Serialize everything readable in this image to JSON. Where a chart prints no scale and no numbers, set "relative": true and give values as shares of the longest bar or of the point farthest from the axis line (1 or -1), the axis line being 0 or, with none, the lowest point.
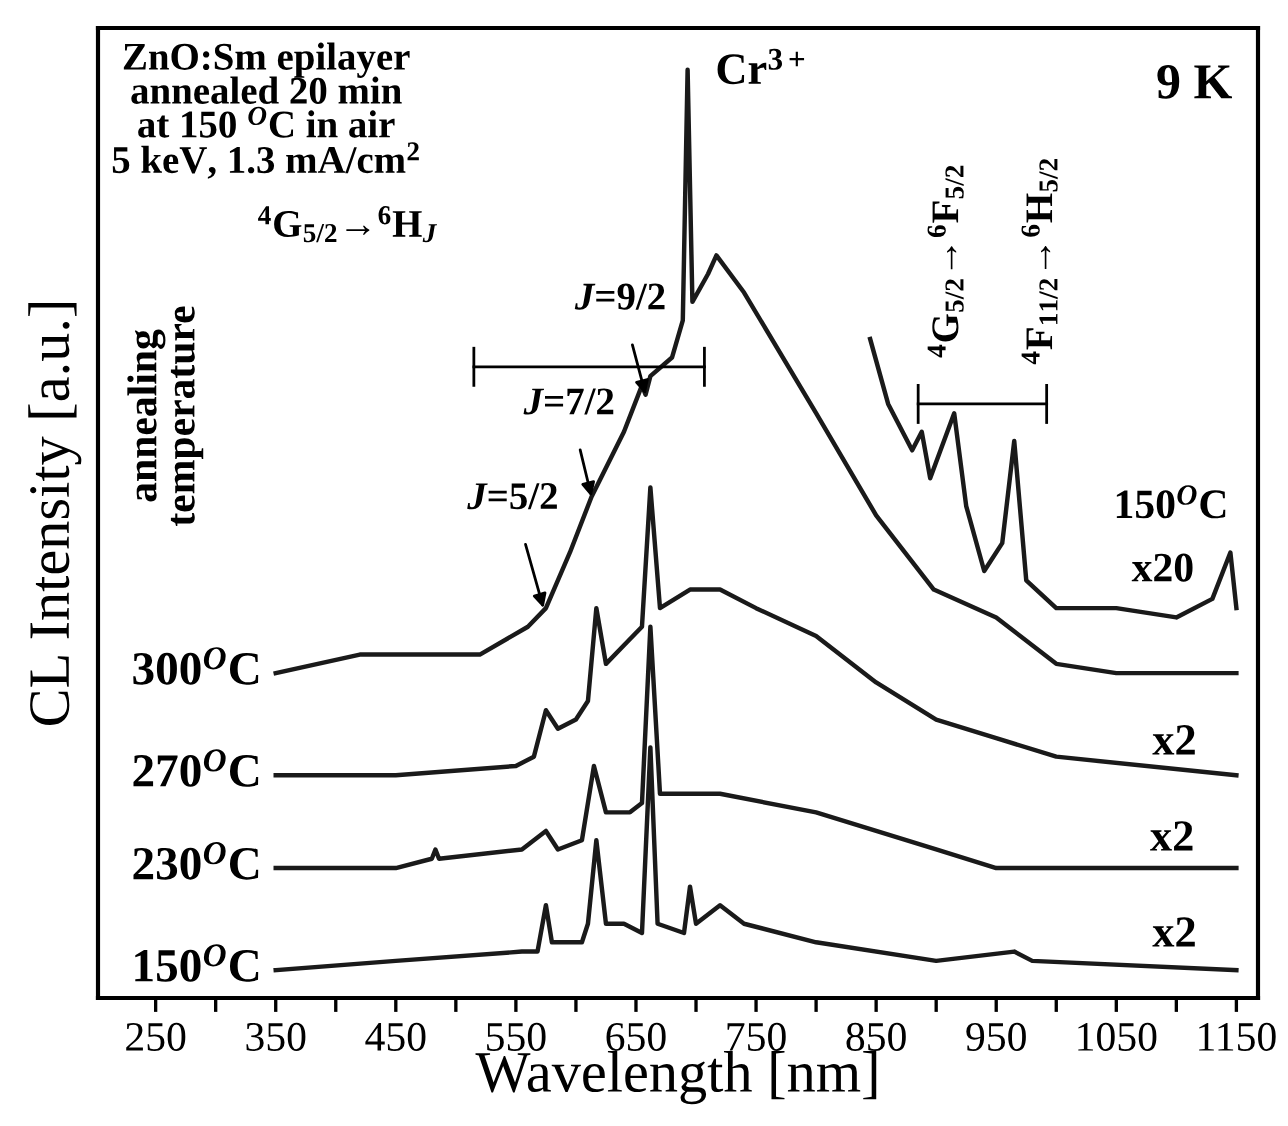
{
  "chart_data": {
    "type": "line",
    "relative": true,
    "xlabel": "Wavelength [nm]",
    "ylabel": "CL Intensity [a.u.]",
    "xlim": [
      202,
      1168
    ],
    "xticks": [
      250,
      {
        "value": 300,
        "label": null
      },
      350,
      {
        "value": 400,
        "label": null
      },
      450,
      {
        "value": 500,
        "label": null
      },
      550,
      {
        "value": 600,
        "label": null
      },
      650,
      {
        "value": 700,
        "label": null
      },
      750,
      {
        "value": 800,
        "label": null
      },
      850,
      {
        "value": 900,
        "label": null
      },
      950,
      {
        "value": 1000,
        "label": null
      },
      1050,
      {
        "value": 1100,
        "label": null
      },
      1150
    ],
    "tick_labels": "x",
    "grid": false,
    "legend": false,
    "marker": "none",
    "line_style": "solid",
    "series": [
      {
        "name": "150$^{O}$C",
        "color": "#1a1a1a",
        "x": [
          350,
          450,
          555,
          568,
          575,
          580,
          605,
          610,
          617,
          625,
          640,
          655,
          662,
          668,
          690,
          695,
          700,
          720,
          740,
          800,
          900,
          965,
          980,
          1150
        ],
        "values": [
          0.03,
          0.04,
          0.05,
          0.05,
          0.1,
          0.06,
          0.06,
          0.08,
          0.17,
          0.08,
          0.08,
          0.07,
          0.27,
          0.08,
          0.07,
          0.12,
          0.08,
          0.1,
          0.08,
          0.06,
          0.04,
          0.05,
          0.04,
          0.03
        ]
      },
      {
        "name": "230$^{O}$C",
        "color": "#1a1a1a",
        "x": [
          350,
          450,
          480,
          483,
          486,
          555,
          575,
          585,
          605,
          615,
          625,
          645,
          655,
          662,
          670,
          695,
          720,
          800,
          900,
          950,
          1150
        ],
        "values": [
          0.14,
          0.14,
          0.15,
          0.16,
          0.15,
          0.16,
          0.18,
          0.16,
          0.17,
          0.25,
          0.2,
          0.2,
          0.21,
          0.4,
          0.22,
          0.22,
          0.22,
          0.2,
          0.16,
          0.14,
          0.14
        ]
      },
      {
        "name": "270$^{O}$C",
        "color": "#1a1a1a",
        "x": [
          350,
          450,
          550,
          565,
          575,
          585,
          600,
          610,
          617,
          625,
          640,
          655,
          662,
          670,
          695,
          720,
          750,
          800,
          850,
          900,
          950,
          1000,
          1150
        ],
        "values": [
          0.24,
          0.24,
          0.25,
          0.26,
          0.31,
          0.29,
          0.3,
          0.32,
          0.42,
          0.36,
          0.38,
          0.4,
          0.55,
          0.42,
          0.44,
          0.44,
          0.42,
          0.39,
          0.34,
          0.3,
          0.28,
          0.26,
          0.24
        ]
      },
      {
        "name": "300$^{O}$C",
        "color": "#1a1a1a",
        "x": [
          350,
          420,
          520,
          560,
          575,
          595,
          613,
          640,
          655,
          658,
          662,
          680,
          689,
          693,
          697,
          710,
          717,
          740,
          800,
          850,
          898,
          950,
          1000,
          1050,
          1150
        ],
        "values": [
          0.35,
          0.37,
          0.37,
          0.4,
          0.42,
          0.48,
          0.54,
          0.61,
          0.66,
          0.65,
          0.67,
          0.69,
          0.73,
          1.0,
          0.75,
          0.78,
          0.8,
          0.76,
          0.63,
          0.52,
          0.44,
          0.41,
          0.36,
          0.35,
          0.35
        ]
      },
      {
        "name": "150$^{O}$C",
        "color": "#1a1a1a",
        "x": [
          845,
          860,
          880,
          888,
          895,
          915,
          925,
          940,
          955,
          965,
          975,
          1000,
          1050,
          1100,
          1130,
          1145,
          1150
        ],
        "values": [
          0.71,
          0.64,
          0.59,
          0.61,
          0.56,
          0.63,
          0.53,
          0.46,
          0.49,
          0.6,
          0.45,
          0.42,
          0.42,
          0.41,
          0.43,
          0.48,
          0.42
        ]
      }
    ],
    "annotations": [
      "ZnO:Sm epilayer\nannealed 20 min\nat 150 $^{O}$C in air\n5 keV, 1.3 mA/cm$^{2}$",
      "9 K",
      {
        "text": "Cr$^{3+}$",
        "x": 693,
        "y": 1.0
      },
      "$^{4}$G$_{5/2}$→$^{6}$H$_{J}$",
      {
        "text": "J=9/2",
        "x": 658,
        "y": 0.65
      },
      {
        "text": "J=7/2",
        "x": 613,
        "y": 0.54
      },
      {
        "text": "J=5/2",
        "x": 573,
        "y": 0.42
      },
      "$^{4}$G$_{5/2}$→$^{6}$F$_{5/2}$",
      "$^{4}$F$_{11/2}$→$^{6}$H$_{5/2}$",
      "x20",
      "x2",
      "x2",
      "x2",
      "annealing\ntemperature"
    ]
  }
}
